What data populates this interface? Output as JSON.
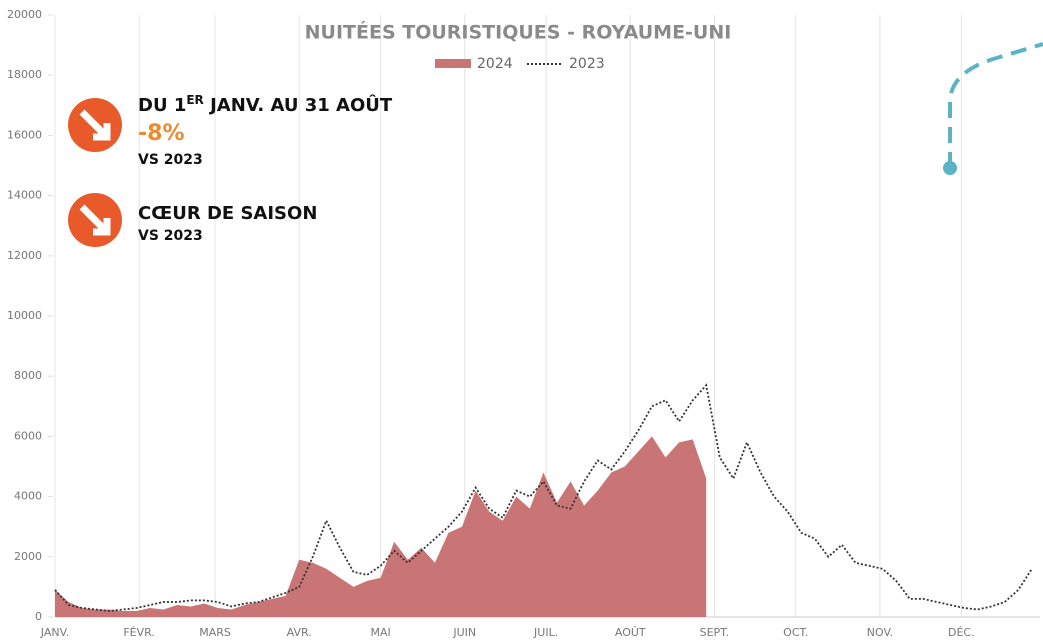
{
  "chart_data": {
    "type": "area-line",
    "title": "NUITÉES TOURISTIQUES - ROYAUME-UNI",
    "annotations": {
      "period_pre": "DU 1",
      "period_sup": "ER",
      "period_post": " JANV. AU 31 AOÛT",
      "change": "-8%",
      "vs1": "VS 2023",
      "season": "CŒUR DE SAISON",
      "vs2": "VS 2023"
    },
    "x": [
      0,
      5,
      10,
      15,
      20,
      25,
      30,
      35,
      40,
      45,
      50,
      55,
      60,
      65,
      70,
      75,
      80,
      85,
      90,
      95,
      100,
      105,
      110,
      115,
      120,
      125,
      130,
      135,
      140,
      145,
      150,
      155,
      160,
      165,
      170,
      175,
      180,
      185,
      190,
      195,
      200,
      205,
      210,
      215,
      220,
      225,
      230,
      235,
      240,
      245,
      250,
      255,
      260,
      265,
      270,
      275,
      280,
      285,
      290,
      295,
      300,
      305,
      310,
      315,
      320,
      325,
      330,
      335,
      340,
      345,
      350,
      355,
      360
    ],
    "series": [
      {
        "name": "2024",
        "color": "#c97575",
        "style": "area",
        "values": [
          900,
          500,
          300,
          250,
          250,
          200,
          200,
          300,
          250,
          400,
          350,
          450,
          300,
          250,
          400,
          500,
          600,
          700,
          1900,
          1800,
          1600,
          1300,
          1000,
          1200,
          1300,
          2500,
          1900,
          2300,
          1800,
          2800,
          3000,
          4200,
          3500,
          3200,
          4000,
          3600,
          4800,
          3800,
          4500,
          3700,
          4200,
          4800,
          5000,
          5500,
          6000,
          5300,
          5800,
          5900,
          4600,
          null,
          null,
          null,
          null,
          null,
          null,
          null,
          null,
          null,
          null,
          null,
          null,
          null,
          null,
          null,
          null,
          null,
          null,
          null,
          null,
          null,
          null,
          null,
          null
        ]
      },
      {
        "name": "2023",
        "color": "#333333",
        "style": "dotted",
        "values": [
          900,
          400,
          300,
          250,
          200,
          250,
          300,
          400,
          500,
          500,
          550,
          550,
          500,
          350,
          450,
          500,
          650,
          800,
          1000,
          2000,
          3200,
          2300,
          1500,
          1400,
          1700,
          2200,
          1800,
          2200,
          2600,
          3000,
          3500,
          4300,
          3600,
          3300,
          4200,
          4000,
          4500,
          3700,
          3600,
          4500,
          5200,
          4900,
          5500,
          6200,
          7000,
          7200,
          6500,
          7200,
          7700,
          5300,
          4600,
          5800,
          4800,
          4000,
          3500,
          2800,
          2600,
          2000,
          2400,
          1800,
          1700,
          1600,
          1200,
          600,
          600,
          500,
          400,
          300,
          250,
          350,
          500,
          900,
          1600
        ]
      }
    ],
    "xlim": [
      0,
      363
    ],
    "xticks": [
      {
        "value": 0,
        "label": "JANV."
      },
      {
        "value": 31,
        "label": "FÉVR."
      },
      {
        "value": 59,
        "label": "MARS"
      },
      {
        "value": 90,
        "label": "AVR."
      },
      {
        "value": 120,
        "label": "MAI"
      },
      {
        "value": 151,
        "label": "JUIN"
      },
      {
        "value": 181,
        "label": "JUIL."
      },
      {
        "value": 212,
        "label": "AOÛT"
      },
      {
        "value": 243,
        "label": "SEPT."
      },
      {
        "value": 273,
        "label": "OCT."
      },
      {
        "value": 304,
        "label": "NOV."
      },
      {
        "value": 334,
        "label": "DÉC."
      }
    ],
    "ylim": [
      0,
      20000
    ],
    "yticks": [
      0,
      2000,
      4000,
      6000,
      8000,
      10000,
      12000,
      14000,
      16000,
      18000,
      20000
    ],
    "grid": true
  }
}
